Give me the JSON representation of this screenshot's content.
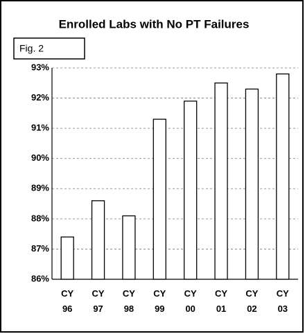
{
  "chart_data": {
    "type": "bar",
    "title": "Enrolled Labs with No PT Failures",
    "annotation": "Fig. 2",
    "categories": [
      "CY 96",
      "CY 97",
      "CY 98",
      "CY 99",
      "CY 00",
      "CY 01",
      "CY 02",
      "CY 03"
    ],
    "values": [
      87.4,
      88.6,
      88.1,
      91.3,
      91.9,
      92.5,
      92.3,
      92.8
    ],
    "color": "#ffffff",
    "ylim": [
      86,
      93
    ],
    "yticks": [
      {
        "value": 86,
        "label": "86%"
      },
      {
        "value": 87,
        "label": "87%"
      },
      {
        "value": 88,
        "label": "88%"
      },
      {
        "value": 89,
        "label": "89%"
      },
      {
        "value": 90,
        "label": "90%"
      },
      {
        "value": 91,
        "label": "91%"
      },
      {
        "value": 92,
        "label": "92%"
      },
      {
        "value": 93,
        "label": "93%"
      }
    ],
    "grid": true
  }
}
